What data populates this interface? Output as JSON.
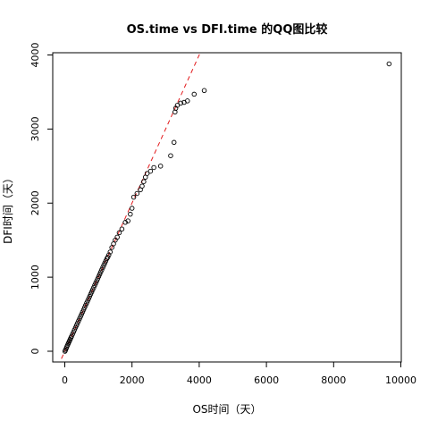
{
  "chart_data": {
    "type": "scatter",
    "title": "OS.time vs DFI.time 的QQ图比较",
    "xlabel": "OS时间（天）",
    "ylabel": "DFI时间（天）",
    "xlim": [
      0,
      10000
    ],
    "ylim": [
      0,
      4000
    ],
    "xticks": [
      0,
      2000,
      4000,
      6000,
      8000,
      10000
    ],
    "yticks": [
      0,
      1000,
      2000,
      3000,
      4000
    ],
    "grid": false,
    "legend": "none",
    "reference_line": {
      "type": "y=x",
      "color": "#e31a1c",
      "style": "dashed"
    },
    "point_color": "#000000",
    "series": [
      {
        "x": [
          5,
          20,
          40,
          60,
          80,
          100,
          120,
          140,
          160,
          180,
          200,
          230,
          260,
          290,
          320,
          350,
          380,
          410,
          440,
          470,
          500,
          530,
          560,
          590,
          620,
          650,
          680,
          710,
          740,
          770,
          800,
          830,
          860,
          890,
          920,
          950,
          980,
          1010,
          1040,
          1070,
          1100,
          1130,
          1160,
          1190,
          1220,
          1250,
          1280,
          1310,
          1350,
          1400,
          1450,
          1500,
          1560,
          1620,
          1700,
          1800,
          1880,
          1950,
          2000,
          2050,
          2150,
          2250,
          2300,
          2350,
          2400,
          2450,
          2550,
          2650,
          2850,
          3150,
          3250,
          3280,
          3300,
          3350,
          3450,
          3550,
          3650,
          3850,
          4150,
          9650
        ],
        "y": [
          0,
          15,
          35,
          60,
          80,
          100,
          120,
          140,
          160,
          180,
          200,
          230,
          260,
          290,
          320,
          350,
          380,
          410,
          440,
          470,
          500,
          530,
          560,
          590,
          620,
          650,
          680,
          710,
          740,
          770,
          800,
          830,
          860,
          890,
          920,
          950,
          980,
          1010,
          1040,
          1070,
          1100,
          1130,
          1160,
          1190,
          1220,
          1250,
          1270,
          1300,
          1340,
          1400,
          1450,
          1500,
          1540,
          1600,
          1650,
          1740,
          1760,
          1850,
          1930,
          2080,
          2130,
          2180,
          2230,
          2290,
          2350,
          2400,
          2430,
          2480,
          2500,
          2640,
          2820,
          3230,
          3280,
          3320,
          3350,
          3360,
          3380,
          3470,
          3520,
          3880
        ]
      }
    ]
  }
}
